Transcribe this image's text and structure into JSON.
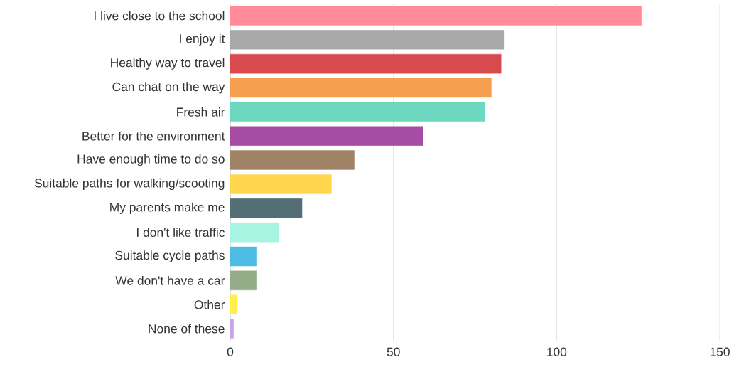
{
  "chart_data": {
    "type": "bar",
    "orientation": "horizontal",
    "categories": [
      "I live close to the school",
      "I enjoy it",
      "Healthy way to travel",
      "Can chat on the way",
      "Fresh air",
      "Better for the environment",
      "Have enough time to do so",
      "Suitable paths for walking/scooting",
      "My parents make me",
      "I don't like traffic",
      "Suitable cycle paths",
      "We don't have a car",
      "Other",
      "None of these"
    ],
    "values": [
      126,
      84,
      83,
      80,
      78,
      59,
      38,
      31,
      22,
      15,
      8,
      8,
      2,
      1
    ],
    "colors": [
      "#ff8c96",
      "#a8a8a8",
      "#d94a4f",
      "#f59f4f",
      "#6cd8c0",
      "#a64ca5",
      "#a08367",
      "#ffd64d",
      "#546e75",
      "#a8f4e3",
      "#4dbbe3",
      "#94ad88",
      "#fff04a",
      "#c9a3e6"
    ],
    "xlim": [
      0,
      150
    ],
    "xticks": [
      0,
      50,
      100,
      150
    ],
    "grid": "x"
  }
}
